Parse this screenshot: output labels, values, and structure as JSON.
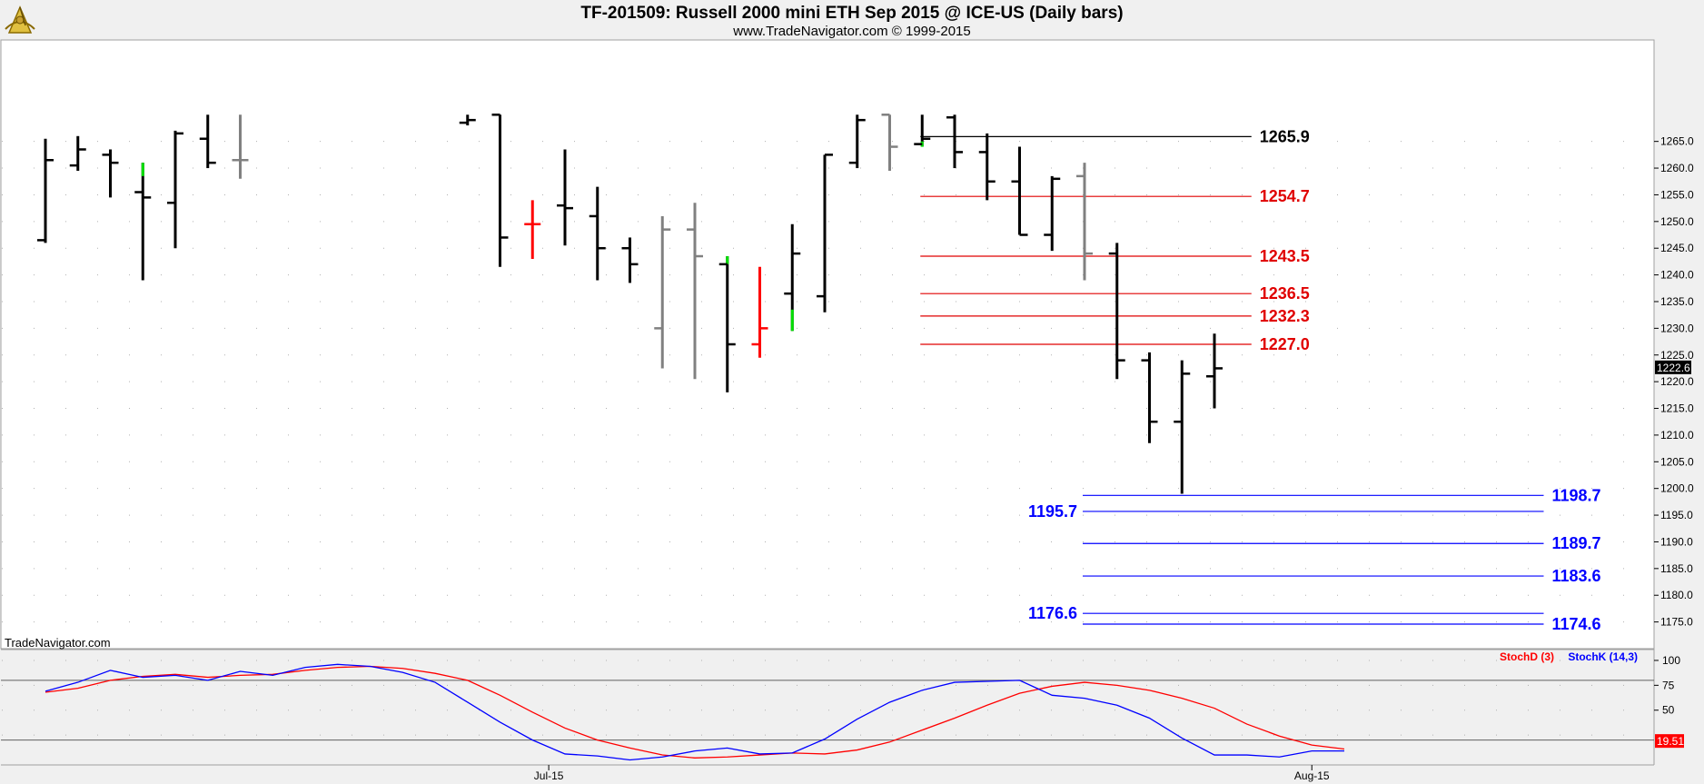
{
  "header": {
    "title": "TF-201509:  Russell 2000 mini ETH Sep 2015 @ ICE-US  (Daily bars)",
    "subtitle": "www.TradeNavigator.com © 1999-2015",
    "logo_icon": "sextant-logo-icon"
  },
  "watermark": "TradeNavigator.com",
  "colors": {
    "background": "#ffffff",
    "frame": "#f0f0f0",
    "bar_default": "#000000",
    "bar_red": "#ff0000",
    "bar_green": "#00e000",
    "bar_gray": "#808080",
    "resistance": "#e00000",
    "support": "#0000ff",
    "stoch_d": "#ff0000",
    "stoch_k": "#0000ff"
  },
  "chart_data": [
    {
      "type": "ohlc",
      "ylim": [
        1170,
        1284
      ],
      "y_ticks": [
        "1175.0",
        "1180.0",
        "1185.0",
        "1190.0",
        "1195.0",
        "1200.0",
        "1205.0",
        "1210.0",
        "1215.0",
        "1220.0",
        "1225.0",
        "1230.0",
        "1235.0",
        "1240.0",
        "1245.0",
        "1250.0",
        "1255.0",
        "1260.0",
        "1265.0"
      ],
      "x_labels": [
        {
          "label": "Jul-15",
          "index": 15.5
        },
        {
          "label": "Aug-15",
          "index": 39
        }
      ],
      "last_price": "1222.6",
      "bars": [
        {
          "i": 0,
          "o": 1246.5,
          "h": 1265.5,
          "l": 1246.0,
          "c": 1261.5,
          "color": "black"
        },
        {
          "i": 1,
          "o": 1260.5,
          "h": 1266.0,
          "l": 1259.5,
          "c": 1263.5,
          "color": "black"
        },
        {
          "i": 2,
          "o": 1262.5,
          "h": 1263.5,
          "l": 1254.5,
          "c": 1261.0,
          "color": "black"
        },
        {
          "i": 3,
          "o": 1255.5,
          "h": 1261.0,
          "l": 1239.0,
          "c": 1254.5,
          "color": "black",
          "top_color": "green",
          "top_from": 1258.5
        },
        {
          "i": 4,
          "o": 1253.5,
          "h": 1267.0,
          "l": 1245.0,
          "c": 1266.5,
          "color": "black"
        },
        {
          "i": 5,
          "o": 1265.5,
          "h": 1270.0,
          "l": 1260.0,
          "c": 1261.0,
          "color": "black"
        },
        {
          "i": 6,
          "o": 1261.5,
          "h": 1270.0,
          "l": 1258.0,
          "c": 1261.5,
          "color": "gray"
        },
        {
          "i": 13,
          "o": 1268.5,
          "h": 1270.0,
          "l": 1268.0,
          "c": 1269.0,
          "color": "black"
        },
        {
          "i": 14,
          "o": 1270.0,
          "h": 1270.0,
          "l": 1241.5,
          "c": 1247.0,
          "color": "black"
        },
        {
          "i": 15,
          "o": 1249.5,
          "h": 1254.0,
          "l": 1243.0,
          "c": 1249.5,
          "color": "red"
        },
        {
          "i": 16,
          "o": 1253.0,
          "h": 1263.5,
          "l": 1245.5,
          "c": 1252.5,
          "color": "black"
        },
        {
          "i": 17,
          "o": 1251.0,
          "h": 1256.5,
          "l": 1239.0,
          "c": 1245.0,
          "color": "black"
        },
        {
          "i": 18,
          "o": 1245.0,
          "h": 1247.0,
          "l": 1238.5,
          "c": 1242.0,
          "color": "black"
        },
        {
          "i": 19,
          "o": 1230.0,
          "h": 1251.0,
          "l": 1222.5,
          "c": 1248.5,
          "color": "gray"
        },
        {
          "i": 20,
          "o": 1248.5,
          "h": 1253.5,
          "l": 1220.5,
          "c": 1243.5,
          "color": "gray"
        },
        {
          "i": 21,
          "o": 1242.0,
          "h": 1243.5,
          "l": 1218.0,
          "c": 1227.0,
          "color": "black",
          "top_color": "green",
          "top_from": 1242.0
        },
        {
          "i": 22,
          "o": 1227.0,
          "h": 1241.5,
          "l": 1224.5,
          "c": 1230.0,
          "color": "red"
        },
        {
          "i": 23,
          "o": 1236.5,
          "h": 1249.5,
          "l": 1229.5,
          "c": 1244.0,
          "color": "black",
          "bottom_color": "green",
          "bottom_to": 1233.5
        },
        {
          "i": 24,
          "o": 1236.0,
          "h": 1262.5,
          "l": 1233.0,
          "c": 1262.5,
          "color": "black"
        },
        {
          "i": 25,
          "o": 1261.0,
          "h": 1270.0,
          "l": 1260.0,
          "c": 1269.0,
          "color": "black"
        },
        {
          "i": 26,
          "o": 1270.0,
          "h": 1270.0,
          "l": 1259.5,
          "c": 1264.0,
          "color": "gray"
        },
        {
          "i": 27,
          "o": 1264.5,
          "h": 1270.0,
          "l": 1264.0,
          "c": 1265.5,
          "color": "black",
          "bottom_color": "green",
          "bottom_to": 1265.0
        },
        {
          "i": 28,
          "o": 1269.5,
          "h": 1270.0,
          "l": 1260.0,
          "c": 1263.0,
          "color": "black"
        },
        {
          "i": 29,
          "o": 1263.0,
          "h": 1266.5,
          "l": 1254.0,
          "c": 1257.5,
          "color": "black"
        },
        {
          "i": 30,
          "o": 1257.5,
          "h": 1264.0,
          "l": 1247.5,
          "c": 1247.5,
          "color": "black"
        },
        {
          "i": 31,
          "o": 1247.5,
          "h": 1258.5,
          "l": 1244.5,
          "c": 1258.0,
          "color": "black"
        },
        {
          "i": 32,
          "o": 1258.5,
          "h": 1261.0,
          "l": 1239.0,
          "c": 1244.0,
          "color": "gray"
        },
        {
          "i": 33,
          "o": 1244.0,
          "h": 1246.0,
          "l": 1220.5,
          "c": 1224.0,
          "color": "black"
        },
        {
          "i": 34,
          "o": 1224.0,
          "h": 1225.5,
          "l": 1208.5,
          "c": 1212.5,
          "color": "black"
        },
        {
          "i": 35,
          "o": 1212.5,
          "h": 1224.0,
          "l": 1199.0,
          "c": 1221.5,
          "color": "black"
        },
        {
          "i": 36,
          "o": 1221.0,
          "h": 1229.0,
          "l": 1215.0,
          "c": 1222.5,
          "color": "black"
        }
      ],
      "levels": [
        {
          "value": 1265.9,
          "label": "1265.9",
          "kind": "black",
          "from": 27,
          "to": 37,
          "label_side": "right"
        },
        {
          "value": 1254.7,
          "label": "1254.7",
          "kind": "resistance",
          "from": 27,
          "to": 37,
          "label_side": "right"
        },
        {
          "value": 1243.5,
          "label": "1243.5",
          "kind": "resistance",
          "from": 27,
          "to": 37,
          "label_side": "right"
        },
        {
          "value": 1236.5,
          "label": "1236.5",
          "kind": "resistance",
          "from": 27,
          "to": 37,
          "label_side": "right"
        },
        {
          "value": 1232.3,
          "label": "1232.3",
          "kind": "resistance",
          "from": 27,
          "to": 37,
          "label_side": "right"
        },
        {
          "value": 1227.0,
          "label": "1227.0",
          "kind": "resistance",
          "from": 27,
          "to": 37,
          "label_side": "right"
        },
        {
          "value": 1198.7,
          "label": "1198.7",
          "kind": "support",
          "from": 32,
          "to": 46,
          "label_side": "right"
        },
        {
          "value": 1195.7,
          "label": "1195.7",
          "kind": "support",
          "from": 32,
          "to": 46,
          "label_side": "left"
        },
        {
          "value": 1189.7,
          "label": "1189.7",
          "kind": "support",
          "from": 32,
          "to": 46,
          "label_side": "right"
        },
        {
          "value": 1183.6,
          "label": "1183.6",
          "kind": "support",
          "from": 32,
          "to": 46,
          "label_side": "right"
        },
        {
          "value": 1176.6,
          "label": "1176.6",
          "kind": "support",
          "from": 32,
          "to": 46,
          "label_side": "left"
        },
        {
          "value": 1174.6,
          "label": "1174.6",
          "kind": "support",
          "from": 32,
          "to": 46,
          "label_side": "right"
        }
      ]
    },
    {
      "type": "line",
      "ylim": [
        -5,
        110
      ],
      "y_ticks": [
        "100",
        "75",
        "50"
      ],
      "hlines": [
        80,
        20
      ],
      "last_value": "19.51",
      "legend": [
        {
          "name": "StochD (3)",
          "color": "#ff0000"
        },
        {
          "name": "StochK (14,3)",
          "color": "#0000ff"
        }
      ],
      "series": [
        {
          "name": "StochD (3)",
          "points": [
            [
              0,
              68
            ],
            [
              1,
              72
            ],
            [
              2,
              80
            ],
            [
              3,
              84
            ],
            [
              4,
              86
            ],
            [
              5,
              83
            ],
            [
              6,
              85
            ],
            [
              7,
              86
            ],
            [
              8,
              90
            ],
            [
              9,
              93
            ],
            [
              10,
              94
            ],
            [
              11,
              92
            ],
            [
              12,
              87
            ],
            [
              13,
              80
            ],
            [
              14,
              65
            ],
            [
              15,
              48
            ],
            [
              16,
              32
            ],
            [
              17,
              20
            ],
            [
              18,
              12
            ],
            [
              19,
              5
            ],
            [
              20,
              2
            ],
            [
              21,
              3
            ],
            [
              22,
              5
            ],
            [
              23,
              7
            ],
            [
              24,
              6
            ],
            [
              25,
              10
            ],
            [
              26,
              18
            ],
            [
              27,
              30
            ],
            [
              28,
              42
            ],
            [
              29,
              55
            ],
            [
              30,
              67
            ],
            [
              31,
              74
            ],
            [
              32,
              78
            ],
            [
              33,
              75
            ],
            [
              34,
              70
            ],
            [
              35,
              62
            ],
            [
              36,
              52
            ],
            [
              37,
              36
            ],
            [
              38,
              24
            ],
            [
              39,
              15
            ],
            [
              40,
              11
            ]
          ]
        },
        {
          "name": "StochK (14,3)",
          "points": [
            [
              0,
              69
            ],
            [
              1,
              78
            ],
            [
              2,
              90
            ],
            [
              3,
              83
            ],
            [
              4,
              85
            ],
            [
              5,
              80
            ],
            [
              6,
              89
            ],
            [
              7,
              85
            ],
            [
              8,
              93
            ],
            [
              9,
              96
            ],
            [
              10,
              94
            ],
            [
              11,
              88
            ],
            [
              12,
              78
            ],
            [
              13,
              58
            ],
            [
              14,
              38
            ],
            [
              15,
              20
            ],
            [
              16,
              6
            ],
            [
              17,
              4
            ],
            [
              18,
              0
            ],
            [
              19,
              3
            ],
            [
              20,
              9
            ],
            [
              21,
              12
            ],
            [
              22,
              6
            ],
            [
              23,
              7
            ],
            [
              24,
              21
            ],
            [
              25,
              41
            ],
            [
              26,
              58
            ],
            [
              27,
              70
            ],
            [
              28,
              78
            ],
            [
              29,
              79
            ],
            [
              30,
              80
            ],
            [
              31,
              65
            ],
            [
              32,
              62
            ],
            [
              33,
              55
            ],
            [
              34,
              42
            ],
            [
              35,
              22
            ],
            [
              36,
              5
            ],
            [
              37,
              5
            ],
            [
              38,
              3
            ],
            [
              39,
              9
            ],
            [
              40,
              9
            ]
          ]
        }
      ]
    }
  ]
}
